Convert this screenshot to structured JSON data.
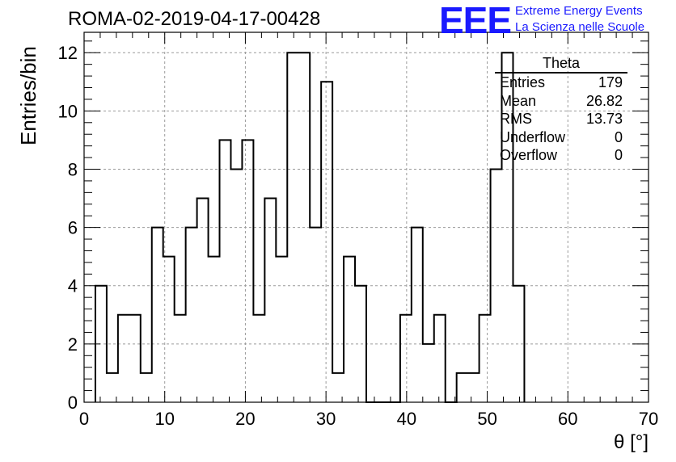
{
  "header": {
    "title": "ROMA-02-2019-04-17-00428",
    "logo": "EEE",
    "logo_line1": "Extreme Energy Events",
    "logo_line2": "La Scienza nelle Scuole"
  },
  "stats_box": {
    "title": "Theta",
    "rows": [
      {
        "label": "Entries",
        "value": "179"
      },
      {
        "label": "Mean",
        "value": "26.82"
      },
      {
        "label": "RMS",
        "value": "13.73"
      },
      {
        "label": "Underflow",
        "value": "0"
      },
      {
        "label": "Overflow",
        "value": "0"
      }
    ]
  },
  "chart_data": {
    "type": "bar",
    "style": "step-histogram",
    "title": "ROMA-02-2019-04-17-00428",
    "xlabel": "θ [°]",
    "ylabel": "Entries/bin",
    "xlim": [
      0,
      70
    ],
    "ylim": [
      0,
      12.7
    ],
    "xticks": [
      0,
      10,
      20,
      30,
      40,
      50,
      60,
      70
    ],
    "yticks": [
      0,
      2,
      4,
      6,
      8,
      10,
      12
    ],
    "grid": true,
    "bin_width": 1.4,
    "bins_start": 1.4,
    "values": [
      4,
      1,
      3,
      3,
      1,
      6,
      5,
      3,
      6,
      7,
      5,
      9,
      8,
      9,
      3,
      7,
      5,
      12,
      12,
      6,
      11,
      1,
      5,
      4,
      0,
      0,
      0,
      3,
      6,
      2,
      3,
      0,
      1,
      1,
      3,
      8,
      12,
      4
    ],
    "line_color": "#000000"
  }
}
